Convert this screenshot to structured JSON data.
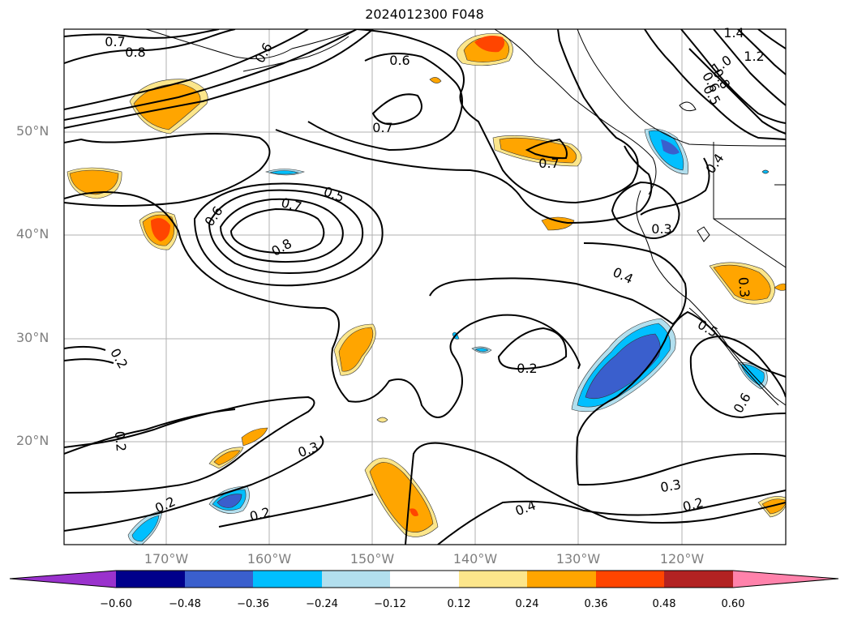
{
  "title": "2024012300 F048",
  "map": {
    "lon_range": [
      -180,
      -110
    ],
    "lat_range": [
      10,
      60
    ],
    "gridlines": true,
    "lat_labels": [
      "20°N",
      "30°N",
      "40°N",
      "50°N"
    ],
    "lon_labels": [
      "170°W",
      "160°W",
      "150°W",
      "140°W",
      "130°W",
      "120°W"
    ],
    "contour_labels": [
      "0.7",
      "0.8",
      "0.6",
      "0.6",
      "1.4",
      "1.2",
      "1.0",
      "0.8",
      "0.6",
      "0.5",
      "0.7",
      "0.7",
      "0.5",
      "0.7",
      "0.6",
      "0.8",
      "0.4",
      "0.3",
      "0.4",
      "0.3",
      "0.5",
      "0.2",
      "0.2",
      "0.6",
      "0.2",
      "0.3",
      "0.2",
      "0.2",
      "0.4",
      "0.3",
      "0.2"
    ]
  },
  "colorbar": {
    "ticks": [
      "−0.60",
      "−0.48",
      "−0.36",
      "−0.24",
      "−0.12",
      "0.12",
      "0.24",
      "0.36",
      "0.48",
      "0.60"
    ],
    "colors": [
      "#9a32cd",
      "#00008b",
      "#3a5fcd",
      "#00bfff",
      "#b2dfee",
      "#ffffff",
      "#fce68b",
      "#ffa500",
      "#ff4500",
      "#b22222",
      "#ff82ab"
    ],
    "extend": "both"
  },
  "colors": {
    "frame": "#000000",
    "grid": "#b0b0b0",
    "label_grey": "#7f7f7f"
  }
}
